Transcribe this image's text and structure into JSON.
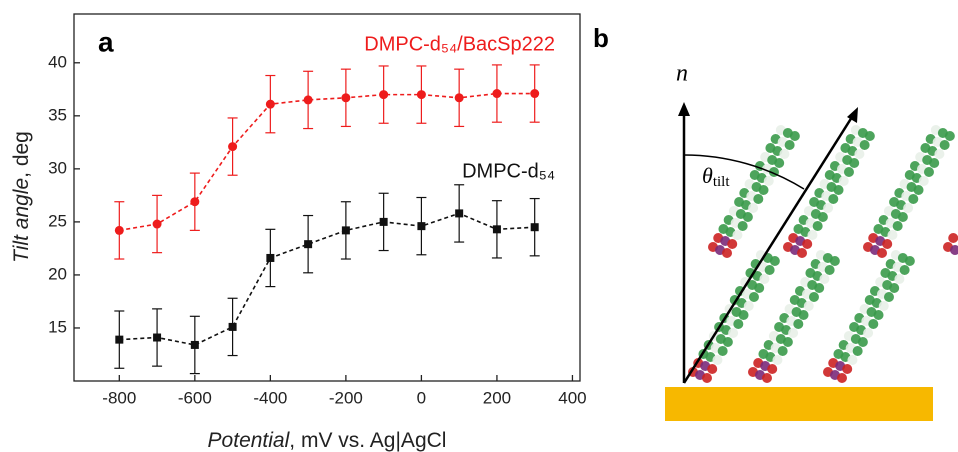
{
  "chart_data": {
    "type": "line",
    "annotations": [
      "a"
    ],
    "xlabel": [
      "Potential",
      ",  mV vs. Ag|AgCl"
    ],
    "ylabel": [
      "Tilt angle",
      ",  deg"
    ],
    "x": [
      -800,
      -700,
      -600,
      -500,
      -400,
      -300,
      -200,
      -100,
      0,
      100,
      200,
      300
    ],
    "series": [
      {
        "name": "DMPC-d₅₄/BacSp222",
        "color": "#ee1c1c",
        "marker": "circle",
        "values": [
          24.2,
          24.8,
          26.9,
          32.1,
          36.1,
          36.5,
          36.7,
          37.0,
          37.0,
          36.7,
          37.1,
          37.1
        ],
        "errors": [
          2.7,
          2.7,
          2.7,
          2.7,
          2.7,
          2.7,
          2.7,
          2.7,
          2.7,
          2.7,
          2.7,
          2.7
        ]
      },
      {
        "name": "DMPC-d₅₄",
        "color": "#111111",
        "marker": "square",
        "values": [
          13.9,
          14.1,
          13.4,
          15.1,
          21.6,
          22.9,
          24.2,
          25.0,
          24.6,
          25.8,
          24.3,
          24.5
        ],
        "errors": [
          2.7,
          2.7,
          2.7,
          2.7,
          2.7,
          2.7,
          2.7,
          2.7,
          2.7,
          2.7,
          2.7,
          2.7
        ]
      }
    ],
    "xlim": [
      -920,
      420
    ],
    "xticks": [
      -800,
      -600,
      -400,
      -200,
      0,
      200,
      400
    ],
    "ylim": [
      10,
      44.6
    ],
    "yticks": [
      15,
      20,
      25,
      30,
      35,
      40
    ],
    "grid": false
  },
  "illustration": {
    "label": "b",
    "normal": "n⃗",
    "angle": [
      "θ",
      "tilt"
    ]
  }
}
